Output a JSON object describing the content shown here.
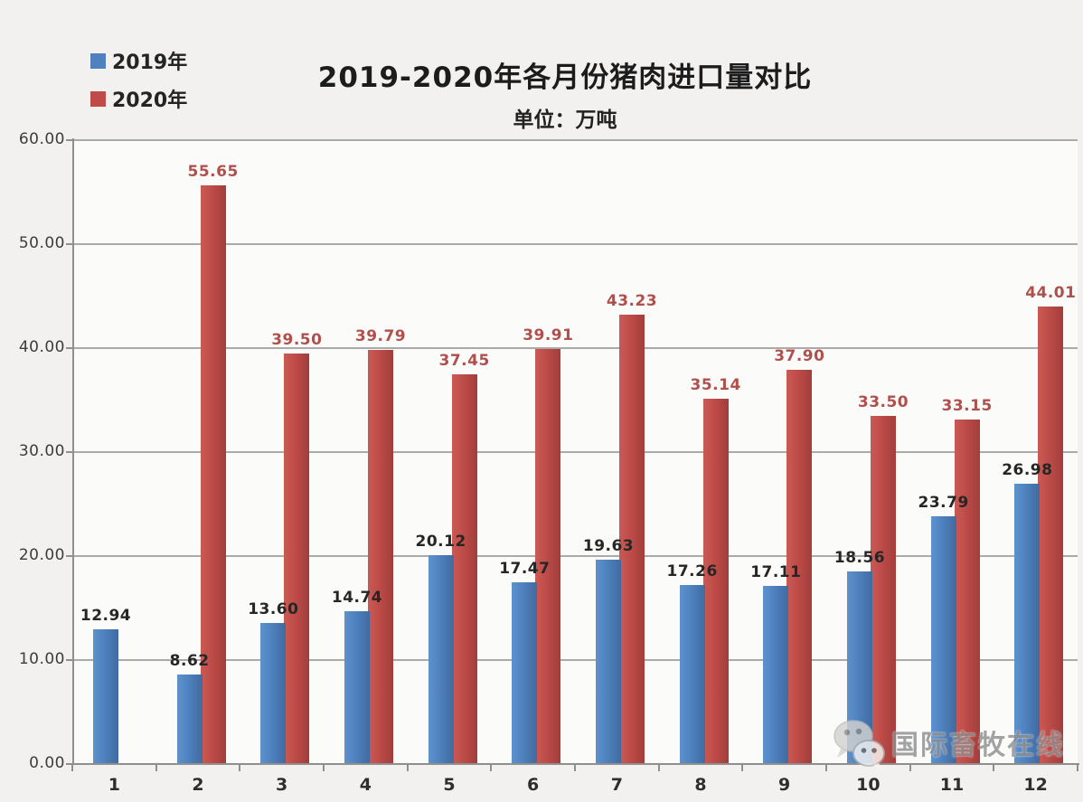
{
  "title": "2019-2020年各月份猪肉进口量对比",
  "subtitle": "单位：万吨",
  "legend": {
    "items": [
      {
        "label": "2019年",
        "color": "#4e81bd"
      },
      {
        "label": "2020年",
        "color": "#be4b48"
      }
    ]
  },
  "watermark": {
    "text": "国际畜牧在线",
    "icon": "wechat-icon"
  },
  "chart_data": {
    "type": "bar",
    "title": "2019-2020年各月份猪肉进口量对比",
    "subtitle": "单位：万吨",
    "categories": [
      "1",
      "2",
      "3",
      "4",
      "5",
      "6",
      "7",
      "8",
      "9",
      "10",
      "11",
      "12"
    ],
    "series": [
      {
        "name": "2019年",
        "color": "#4e81bd",
        "label_color": "#262626",
        "values": [
          12.94,
          8.62,
          13.6,
          14.74,
          20.12,
          17.47,
          19.63,
          17.26,
          17.11,
          18.56,
          23.79,
          26.98
        ]
      },
      {
        "name": "2020年",
        "color": "#be4b48",
        "label_color": "#b0504d",
        "values": [
          null,
          55.65,
          39.5,
          39.79,
          37.45,
          39.91,
          43.23,
          35.14,
          37.9,
          33.5,
          33.15,
          44.01
        ]
      }
    ],
    "ylim": [
      0,
      60
    ],
    "ytick_step": 10,
    "ytick_labels": [
      "0.00",
      "10.00",
      "20.00",
      "30.00",
      "40.00",
      "50.00",
      "60.00"
    ],
    "grid": true,
    "legend_position": "top-left",
    "data_labels": true
  }
}
